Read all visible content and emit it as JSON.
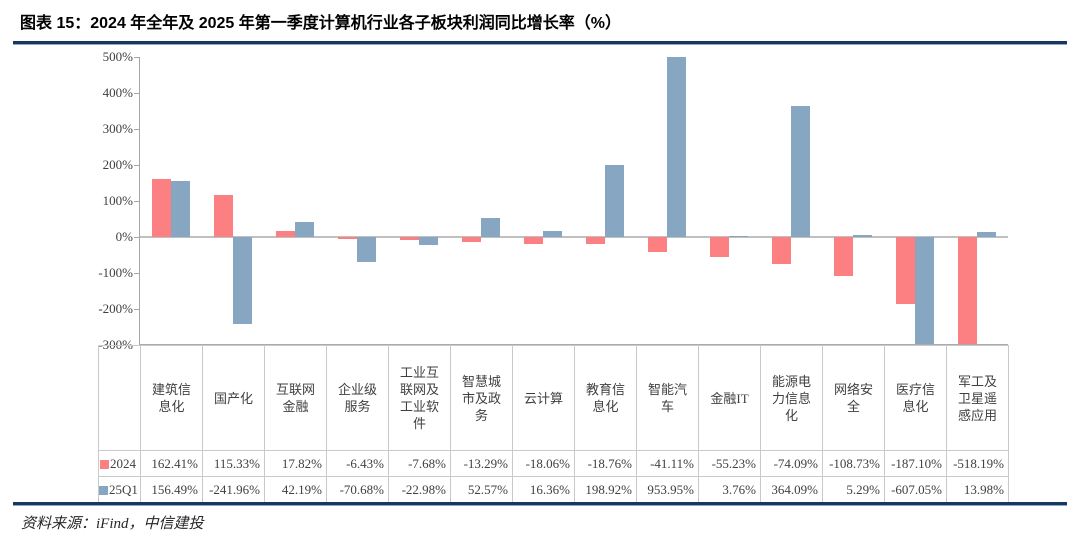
{
  "page": {
    "title": "图表 15：2024 年全年及 2025 年第一季度计算机行业各子板块利润同比增长率（%）",
    "source": "资料来源：iFind，中信建投"
  },
  "colors": {
    "series_2024": "#FC7F82",
    "series_25Q1": "#86A6C1",
    "rule_navy": "#17375E",
    "rule_light": "#8FA9C2",
    "axis_line": "#A6A6A6",
    "zero_line": "#C0C0C0",
    "table_border": "#C9C9C9",
    "text_dark": "#404040"
  },
  "chart_data": {
    "type": "bar",
    "title": "2024 年全年及 2025 年第一季度计算机行业各子板块利润同比增长率（%）",
    "categories": [
      "建筑信息化",
      "国产化",
      "互联网金融",
      "企业级服务",
      "工业互联网及工业软件",
      "智慧城市及政务",
      "云计算",
      "教育信息化",
      "智能汽车",
      "金融IT",
      "能源电力信息化",
      "网络安全",
      "医疗信息化",
      "军工及卫星遥感应用"
    ],
    "series": [
      {
        "name": "2024",
        "values": [
          162.41,
          115.33,
          17.82,
          -6.43,
          -7.68,
          -13.29,
          -18.06,
          -18.76,
          -41.11,
          -55.23,
          -74.09,
          -108.73,
          -187.1,
          -518.19
        ]
      },
      {
        "name": "25Q1",
        "values": [
          156.49,
          -241.96,
          42.19,
          -70.68,
          -22.98,
          52.57,
          16.36,
          198.92,
          953.95,
          3.76,
          364.09,
          5.29,
          -607.05,
          13.98
        ]
      }
    ],
    "ylim": [
      -300,
      500
    ],
    "ytick_step": 100,
    "value_suffix": "%",
    "grid": "zero-line-only",
    "legend_position": "table-rows-left",
    "bars_clipped_to_ylim": true
  }
}
